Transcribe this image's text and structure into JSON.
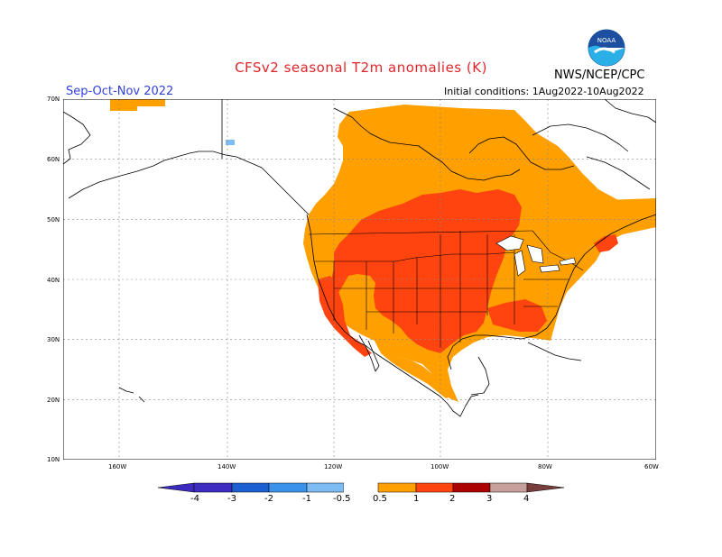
{
  "header": {
    "title": "CFSv2 seasonal T2m anomalies (K)",
    "agency": "NWS/NCEP/CPC",
    "season": "Sep-Oct-Nov 2022",
    "initial_conditions": "Initial conditions: 1Aug2022-10Aug2022",
    "logo_text": "NOAA"
  },
  "axes": {
    "lat_labels": [
      "70N",
      "60N",
      "50N",
      "40N",
      "30N",
      "20N",
      "10N"
    ],
    "lon_labels": [
      "160W",
      "140W",
      "120W",
      "100W",
      "80W",
      "60W"
    ]
  },
  "legend": {
    "labels": [
      "-4",
      "-3",
      "-2",
      "-1",
      "-0.5",
      "0.5",
      "1",
      "2",
      "3",
      "4"
    ],
    "colors": [
      "#3d2bbf",
      "#1c5fd0",
      "#3b92ea",
      "#7cbcf2",
      "#ffffff",
      "#ff9f00",
      "#ff4410",
      "#ad0000",
      "#c79f9a",
      "#7a3d3d"
    ]
  },
  "map": {
    "region": "North America",
    "colors": {
      "anom_05_1": "#ff9f00",
      "anom_1_2": "#ff4410",
      "anom_neg": "#7cbcf2",
      "border": "#000000",
      "grid": "#888888"
    }
  }
}
